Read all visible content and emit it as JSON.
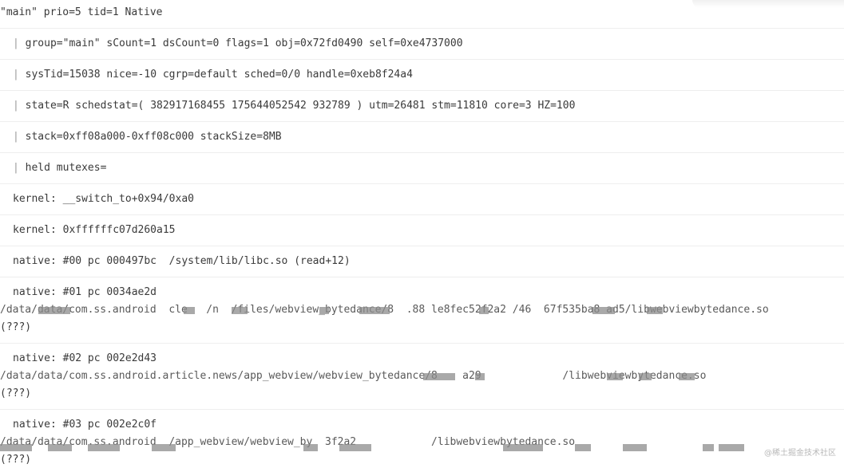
{
  "log": {
    "header": "\"main\" prio=5 tid=1 Native",
    "thread_lines": [
      "group=\"main\" sCount=1 dsCount=0 flags=1 obj=0x72fd0490 self=0xe4737000",
      "sysTid=15038 nice=-10 cgrp=default sched=0/0 handle=0xeb8f24a4",
      "state=R schedstat=( 382917168455 175644052542 932789 ) utm=26481 stm=11810 core=3 HZ=100",
      "stack=0xff08a000-0xff08c000 stackSize=8MB",
      "held mutexes="
    ],
    "bar_glyph": "|",
    "kernel_lines": [
      "kernel: __switch_to+0x94/0xa0",
      "kernel: 0xffffffc07d260a15"
    ],
    "frames": [
      {
        "line": "native: #00 pc 000497bc  /system/lib/libc.so (read+12)"
      },
      {
        "line": "native: #01 pc 0034ae2d",
        "path": "/data/data/com.ss.android  cle   /n  /files/webview_bytedance/8  .88 le8fec52f2a2 /46  67f535ba8 ad5/libwebviewbytedance.so",
        "tail": "(???)"
      },
      {
        "line": "native: #02 pc 002e2d43",
        "path": "/data/data/com.ss.android.article.news/app_webview/webview_bytedance/8    a29             /libwebviewbytedance.so",
        "tail": "(???)"
      },
      {
        "line": "native: #03 pc 002e2c0f",
        "path": "/data/data/com.ss.android  /app_webview/webview_by  3f2a2            /libwebviewbytedance.so",
        "tail": "(???)"
      }
    ]
  },
  "watermark": "@稀土掘金技术社区"
}
